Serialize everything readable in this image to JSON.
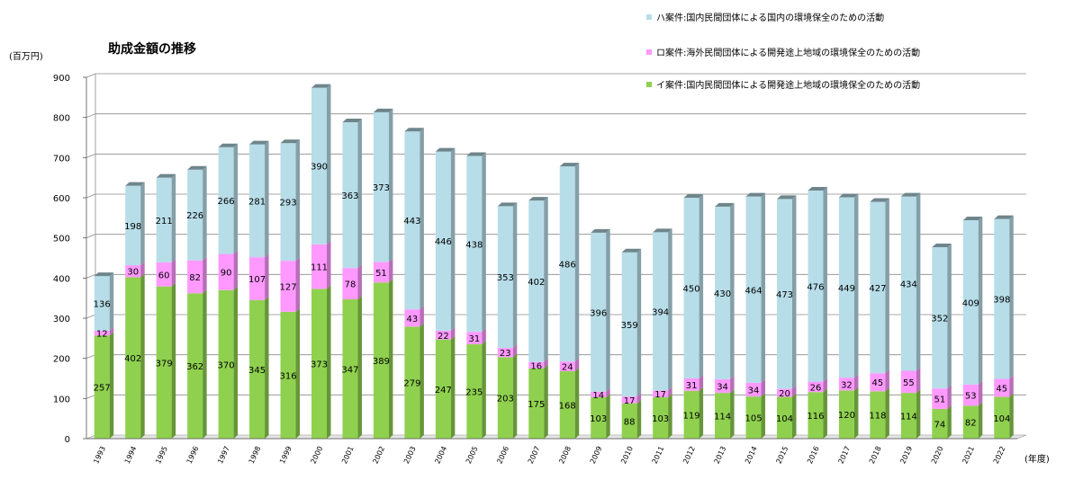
{
  "chart_data": {
    "type": "bar",
    "stacked": true,
    "title": "助成金額の推移",
    "ylabel": "(百万円)",
    "xlabel": "(年度)",
    "ylim": [
      0,
      900
    ],
    "yticks": [
      0,
      100,
      200,
      300,
      400,
      500,
      600,
      700,
      800,
      900
    ],
    "grid": true,
    "legend_position": "top-right",
    "categories": [
      "1993",
      "1994",
      "1995",
      "1996",
      "1997",
      "1998",
      "1999",
      "2000",
      "2001",
      "2002",
      "2003",
      "2004",
      "2005",
      "2006",
      "2007",
      "2008",
      "2009",
      "2010",
      "2011",
      "2012",
      "2013",
      "2014",
      "2015",
      "2016",
      "2017",
      "2018",
      "2019",
      "2020",
      "2021",
      "2022"
    ],
    "series": [
      {
        "name": "イ案件:国内民間団体による開発途上地域の環境保全のための活動",
        "color": "#8fd14f",
        "values": [
          257,
          402,
          379,
          362,
          370,
          345,
          316,
          373,
          347,
          389,
          279,
          247,
          235,
          203,
          175,
          168,
          103,
          88,
          103,
          119,
          114,
          105,
          104,
          116,
          120,
          118,
          114,
          74,
          82,
          104
        ]
      },
      {
        "name": "ロ案件:海外民間団体による開発途上地域の環境保全のための活動",
        "color": "#ff99ff",
        "values": [
          12,
          30,
          60,
          82,
          90,
          107,
          127,
          111,
          78,
          51,
          43,
          22,
          31,
          23,
          16,
          24,
          14,
          17,
          17,
          31,
          34,
          34,
          20,
          26,
          32,
          45,
          55,
          51,
          53,
          45
        ]
      },
      {
        "name": "ハ案件:国内民間団体による国内の環境保全のための活動",
        "color": "#b7dde8",
        "values": [
          136,
          198,
          211,
          226,
          266,
          281,
          293,
          390,
          363,
          373,
          443,
          446,
          438,
          353,
          402,
          486,
          396,
          359,
          394,
          450,
          430,
          464,
          473,
          476,
          449,
          427,
          434,
          352,
          409,
          398
        ]
      }
    ]
  }
}
